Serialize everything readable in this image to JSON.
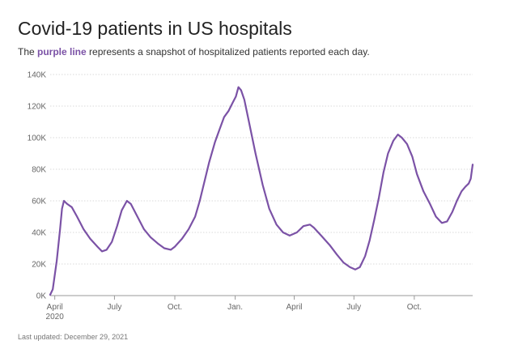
{
  "header": {
    "title": "Covid-19 patients in US hospitals",
    "subtitle_pre": "The ",
    "subtitle_highlight": "purple line",
    "subtitle_post": " represents a snapshot of hospitalized patients reported each day."
  },
  "footer": {
    "updated": "Last updated: December 29, 2021"
  },
  "colors": {
    "line": "#7b52a6",
    "grid": "#d9d9d9",
    "axis": "#999999"
  },
  "chart_data": {
    "type": "line",
    "title": "Covid-19 patients in US hospitals",
    "xlabel": "",
    "ylabel": "",
    "y_ticks": [
      0,
      20000,
      40000,
      60000,
      80000,
      100000,
      120000,
      140000
    ],
    "y_tick_labels": [
      "0K",
      "20K",
      "40K",
      "60K",
      "80K",
      "100K",
      "120K",
      "140K"
    ],
    "ylim": [
      0,
      140000
    ],
    "x_ticks": [
      {
        "x": "2020-04-01",
        "label": "April",
        "sublabel": "2020"
      },
      {
        "x": "2020-07-01",
        "label": "July",
        "sublabel": ""
      },
      {
        "x": "2020-10-01",
        "label": "Oct.",
        "sublabel": ""
      },
      {
        "x": "2021-01-01",
        "label": "Jan.",
        "sublabel": ""
      },
      {
        "x": "2021-04-01",
        "label": "April",
        "sublabel": ""
      },
      {
        "x": "2021-07-01",
        "label": "July",
        "sublabel": ""
      },
      {
        "x": "2021-10-01",
        "label": "Oct.",
        "sublabel": ""
      }
    ],
    "xlim": [
      "2020-03-25",
      "2021-12-29"
    ],
    "grid": true,
    "series": [
      {
        "points": [
          [
            "2020-03-25",
            500
          ],
          [
            "2020-03-29",
            4000
          ],
          [
            "2020-04-04",
            22000
          ],
          [
            "2020-04-09",
            42000
          ],
          [
            "2020-04-12",
            55000
          ],
          [
            "2020-04-15",
            60000
          ],
          [
            "2020-04-20",
            58000
          ],
          [
            "2020-04-27",
            56000
          ],
          [
            "2020-05-05",
            50000
          ],
          [
            "2020-05-15",
            42000
          ],
          [
            "2020-05-25",
            36000
          ],
          [
            "2020-06-05",
            31000
          ],
          [
            "2020-06-12",
            28000
          ],
          [
            "2020-06-19",
            29000
          ],
          [
            "2020-06-27",
            34000
          ],
          [
            "2020-07-05",
            44000
          ],
          [
            "2020-07-12",
            54000
          ],
          [
            "2020-07-20",
            60000
          ],
          [
            "2020-07-26",
            58000
          ],
          [
            "2020-08-05",
            50000
          ],
          [
            "2020-08-15",
            42000
          ],
          [
            "2020-08-25",
            37000
          ],
          [
            "2020-09-05",
            33000
          ],
          [
            "2020-09-15",
            30000
          ],
          [
            "2020-09-25",
            29000
          ],
          [
            "2020-10-01",
            31000
          ],
          [
            "2020-10-12",
            36000
          ],
          [
            "2020-10-22",
            42000
          ],
          [
            "2020-11-01",
            50000
          ],
          [
            "2020-11-08",
            60000
          ],
          [
            "2020-11-15",
            72000
          ],
          [
            "2020-11-22",
            84000
          ],
          [
            "2020-12-01",
            97000
          ],
          [
            "2020-12-08",
            105000
          ],
          [
            "2020-12-15",
            113000
          ],
          [
            "2020-12-22",
            117000
          ],
          [
            "2020-12-28",
            122000
          ],
          [
            "2021-01-02",
            126000
          ],
          [
            "2021-01-06",
            132000
          ],
          [
            "2021-01-10",
            130000
          ],
          [
            "2021-01-15",
            124000
          ],
          [
            "2021-01-22",
            110000
          ],
          [
            "2021-02-01",
            90000
          ],
          [
            "2021-02-12",
            70000
          ],
          [
            "2021-02-22",
            55000
          ],
          [
            "2021-03-05",
            45000
          ],
          [
            "2021-03-15",
            40000
          ],
          [
            "2021-03-25",
            38000
          ],
          [
            "2021-04-05",
            40000
          ],
          [
            "2021-04-15",
            44000
          ],
          [
            "2021-04-25",
            45000
          ],
          [
            "2021-05-01",
            43000
          ],
          [
            "2021-05-12",
            38000
          ],
          [
            "2021-05-25",
            32000
          ],
          [
            "2021-06-05",
            26000
          ],
          [
            "2021-06-15",
            21000
          ],
          [
            "2021-06-25",
            18000
          ],
          [
            "2021-07-03",
            16500
          ],
          [
            "2021-07-10",
            18000
          ],
          [
            "2021-07-18",
            25000
          ],
          [
            "2021-07-25",
            35000
          ],
          [
            "2021-08-01",
            48000
          ],
          [
            "2021-08-08",
            62000
          ],
          [
            "2021-08-15",
            78000
          ],
          [
            "2021-08-22",
            90000
          ],
          [
            "2021-08-30",
            98000
          ],
          [
            "2021-09-06",
            102000
          ],
          [
            "2021-09-12",
            100000
          ],
          [
            "2021-09-20",
            96000
          ],
          [
            "2021-09-28",
            88000
          ],
          [
            "2021-10-05",
            77000
          ],
          [
            "2021-10-15",
            66000
          ],
          [
            "2021-10-25",
            58000
          ],
          [
            "2021-11-03",
            50000
          ],
          [
            "2021-11-12",
            46000
          ],
          [
            "2021-11-20",
            47000
          ],
          [
            "2021-11-28",
            53000
          ],
          [
            "2021-12-05",
            60000
          ],
          [
            "2021-12-12",
            66000
          ],
          [
            "2021-12-18",
            69000
          ],
          [
            "2021-12-23",
            71000
          ],
          [
            "2021-12-26",
            74000
          ],
          [
            "2021-12-29",
            83000
          ]
        ]
      }
    ]
  }
}
